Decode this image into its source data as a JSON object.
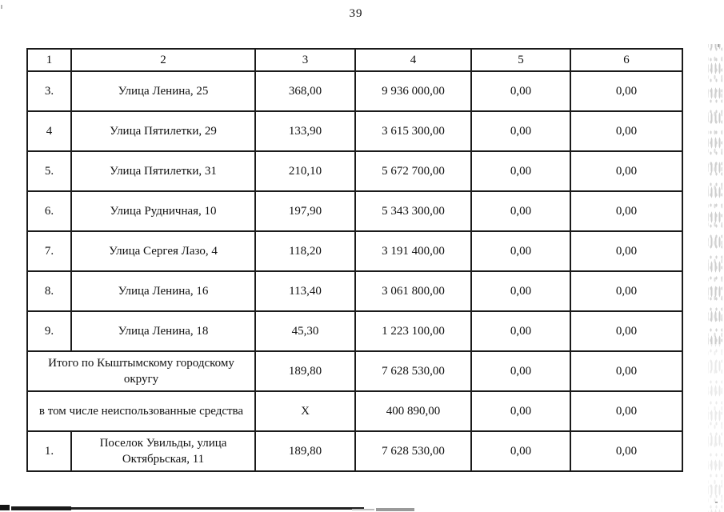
{
  "page": {
    "number": "39"
  },
  "table": {
    "header": [
      "1",
      "2",
      "3",
      "4",
      "5",
      "6"
    ],
    "rows": [
      {
        "num": "3.",
        "address": "Улица Ленина, 25",
        "area": "368,00",
        "amount": "9 936 000,00",
        "col5": "0,00",
        "col6": "0,00"
      },
      {
        "num": "4",
        "address": "Улица Пятилетки, 29",
        "area": "133,90",
        "amount": "3 615 300,00",
        "col5": "0,00",
        "col6": "0,00"
      },
      {
        "num": "5.",
        "address": "Улица Пятилетки, 31",
        "area": "210,10",
        "amount": "5 672 700,00",
        "col5": "0,00",
        "col6": "0,00"
      },
      {
        "num": "6.",
        "address": "Улица Рудничная, 10",
        "area": "197,90",
        "amount": "5 343 300,00",
        "col5": "0,00",
        "col6": "0,00"
      },
      {
        "num": "7.",
        "address": "Улица Сергея Лазо, 4",
        "area": "118,20",
        "amount": "3 191 400,00",
        "col5": "0,00",
        "col6": "0,00"
      },
      {
        "num": "8.",
        "address": "Улица Ленина, 16",
        "area": "113,40",
        "amount": "3 061 800,00",
        "col5": "0,00",
        "col6": "0,00"
      },
      {
        "num": "9.",
        "address": "Улица Ленина, 18",
        "area": "45,30",
        "amount": "1 223 100,00",
        "col5": "0,00",
        "col6": "0,00"
      },
      {
        "merged": "Итого по Кыштымскому городскому округу",
        "area": "189,80",
        "amount": "7 628 530,00",
        "col5": "0,00",
        "col6": "0,00"
      },
      {
        "merged": "в том числе неиспользованные  средства",
        "area": "Х",
        "amount": "400 890,00",
        "col5": "0,00",
        "col6": "0,00"
      },
      {
        "num": "1.",
        "address": "Поселок Увильды, улица Октябрьская, 11",
        "area": "189,80",
        "amount": "7 628 530,00",
        "col5": "0,00",
        "col6": "0,00"
      }
    ]
  }
}
